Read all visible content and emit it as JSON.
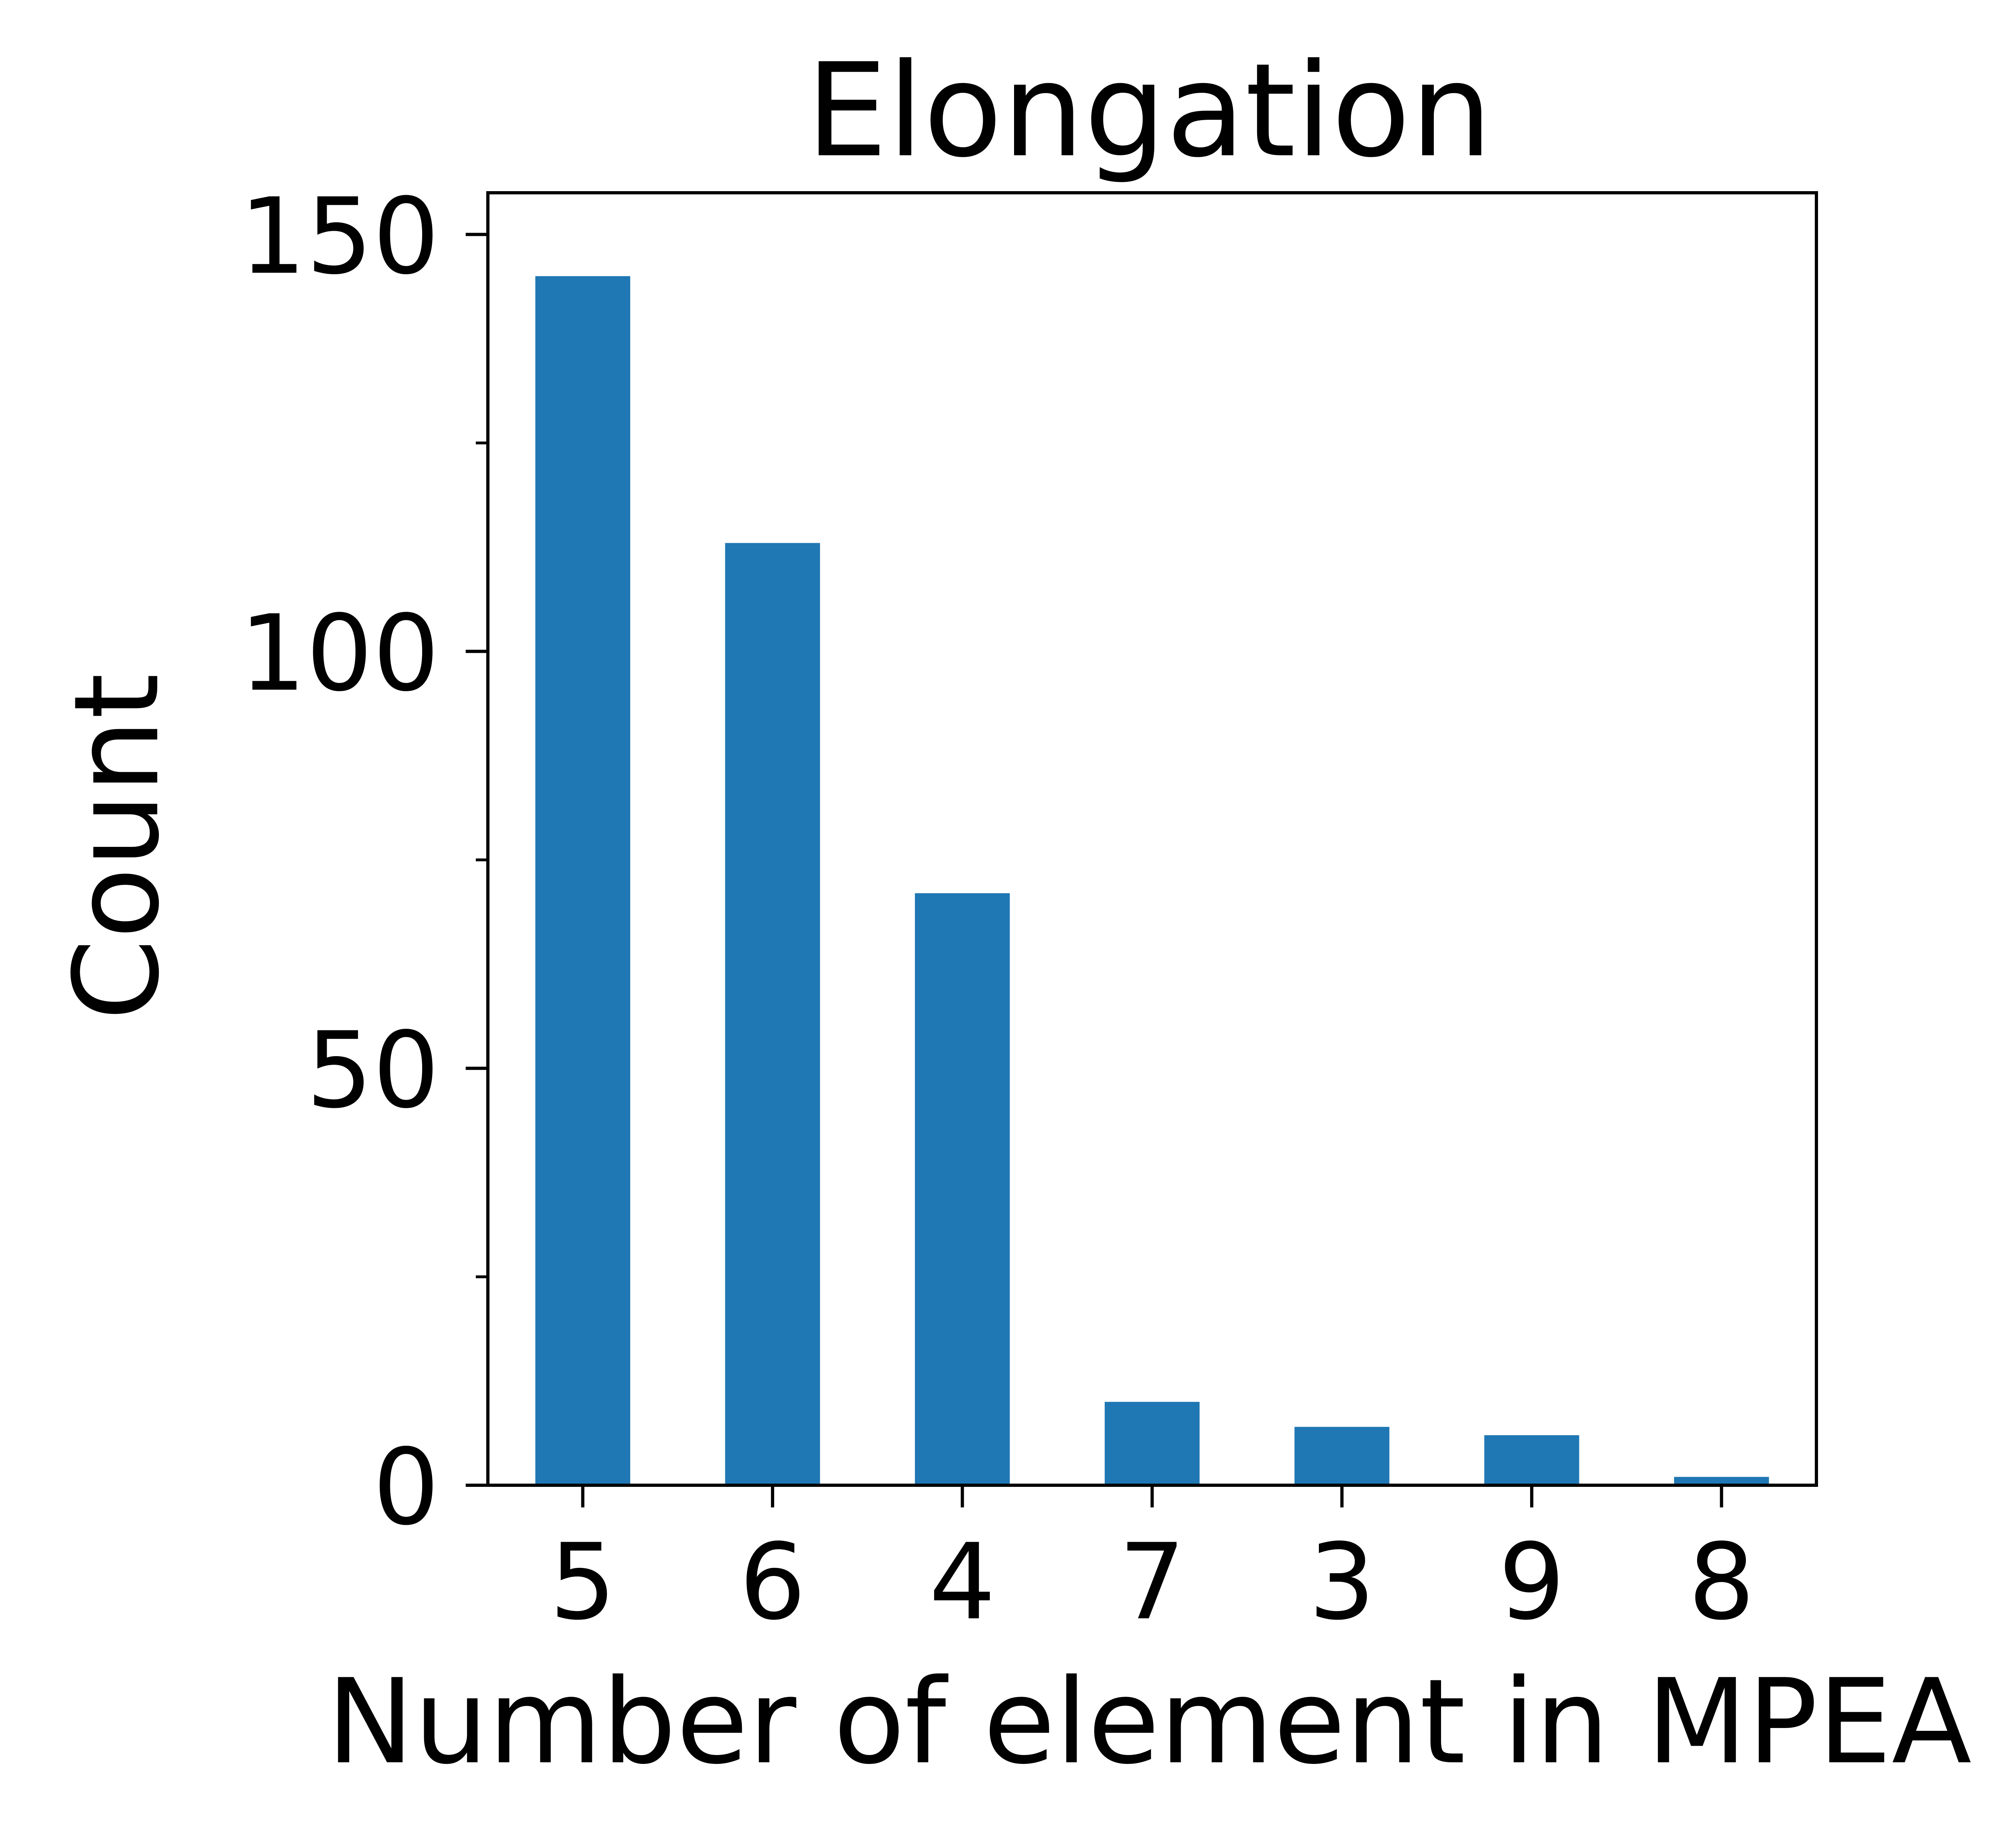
{
  "chart_data": {
    "type": "bar",
    "title": "Elongation",
    "xlabel": "Number of element in MPEA",
    "ylabel": "Count",
    "categories": [
      "5",
      "6",
      "4",
      "7",
      "3",
      "9",
      "8"
    ],
    "values": [
      145,
      113,
      71,
      10,
      7,
      6,
      1
    ],
    "ylim": [
      0,
      150
    ],
    "yticks_major": [
      0,
      50,
      100,
      150
    ],
    "yticks_minor": [
      25,
      75,
      125
    ],
    "grid": false,
    "legend": "none",
    "bar_color": "#1f77b4",
    "axis_color": "#000000"
  }
}
